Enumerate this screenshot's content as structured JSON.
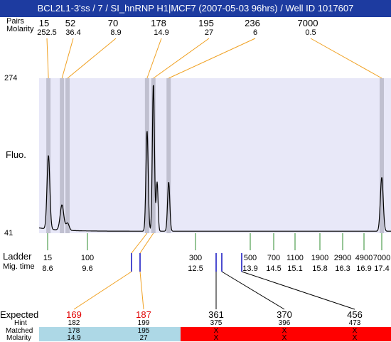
{
  "header": {
    "title": "BCL2L1-3'ss / 7 / SI_hnRNP H1|MCF7 (2007-05-03 96hrs) / Well ID 1017607",
    "row1_label": "Pairs",
    "row2_label": "Molarity"
  },
  "peaks_top": [
    {
      "size": "15",
      "molarity": "252.5"
    },
    {
      "size": "52",
      "molarity": "36.4"
    },
    {
      "size": "70",
      "molarity": "8.9"
    },
    {
      "size": "178",
      "molarity": "14.9"
    },
    {
      "size": "195",
      "molarity": "27"
    },
    {
      "size": "236",
      "molarity": "6"
    },
    {
      "size": "7000",
      "molarity": "0.5"
    }
  ],
  "axis": {
    "y_max": "274",
    "y_min": "41",
    "y_label": "Fluo."
  },
  "ladder": {
    "label": "Ladder",
    "mig_label": "Mig. time",
    "items": [
      {
        "size": "15",
        "time": "8.6"
      },
      {
        "size": "100",
        "time": "9.6"
      },
      {
        "size": "300",
        "time": "12.5"
      },
      {
        "size": "500",
        "time": "13.9"
      },
      {
        "size": "700",
        "time": "14.5"
      },
      {
        "size": "1100",
        "time": "15.1"
      },
      {
        "size": "1900",
        "time": "15.8"
      },
      {
        "size": "2900",
        "time": "16.3"
      },
      {
        "size": "4900",
        "time": "16.9"
      },
      {
        "size": "7000",
        "time": "17.4"
      }
    ]
  },
  "table": {
    "expected_label": "Expected",
    "hint_label": "Hint",
    "matched_label": "Matched",
    "molarity_label": "Molarity",
    "columns": [
      {
        "expected": "169",
        "hint": "182",
        "matched": "178",
        "molarity": "14.9",
        "status": "matched"
      },
      {
        "expected": "187",
        "hint": "199",
        "matched": "195",
        "molarity": "27",
        "status": "matched"
      },
      {
        "expected": "361",
        "hint": "375",
        "matched": "X",
        "molarity": "X",
        "status": "unmatched"
      },
      {
        "expected": "370",
        "hint": "396",
        "matched": "X",
        "molarity": "X",
        "status": "unmatched"
      },
      {
        "expected": "456",
        "hint": "473",
        "matched": "X",
        "molarity": "X",
        "status": "unmatched"
      }
    ]
  },
  "colors": {
    "title_bg": "#1d3ba0",
    "plot_bg": "#e8e8f8",
    "peak_band": "#c0c0d0",
    "connector": "#f0a020",
    "ladder_tick": "#2e8b2e",
    "expected_marker": "#1010c0",
    "expected_red": "#e10000",
    "matched_bg": "#add8e6",
    "unmatched_bg": "#ff0000"
  },
  "chart_data": {
    "type": "line",
    "title": "BCL2L1-3'ss / 7 / SI_hnRNP H1|MCF7 (2007-05-03 96hrs) / Well ID 1017607",
    "ylabel": "Fluo.",
    "ylim": [
      41,
      274
    ],
    "x_unit": "migration time",
    "x_ticks_ladder_times": [
      8.6,
      9.6,
      12.5,
      13.9,
      14.5,
      15.1,
      15.8,
      16.3,
      16.9,
      17.4
    ],
    "peaks": [
      {
        "time": 8.62,
        "height": 155,
        "bp": 15
      },
      {
        "time": 8.96,
        "height": 82,
        "bp": 52
      },
      {
        "time": 9.1,
        "height": 55,
        "bp": 70
      },
      {
        "time": 11.2,
        "height": 195,
        "bp": 178
      },
      {
        "time": 11.37,
        "height": 266,
        "bp": 195
      },
      {
        "time": 11.47,
        "height": 118,
        "bp": null
      },
      {
        "time": 11.78,
        "height": 118,
        "bp": 236
      },
      {
        "time": 17.4,
        "height": 125,
        "bp": 7000
      }
    ],
    "baseline": 44
  }
}
